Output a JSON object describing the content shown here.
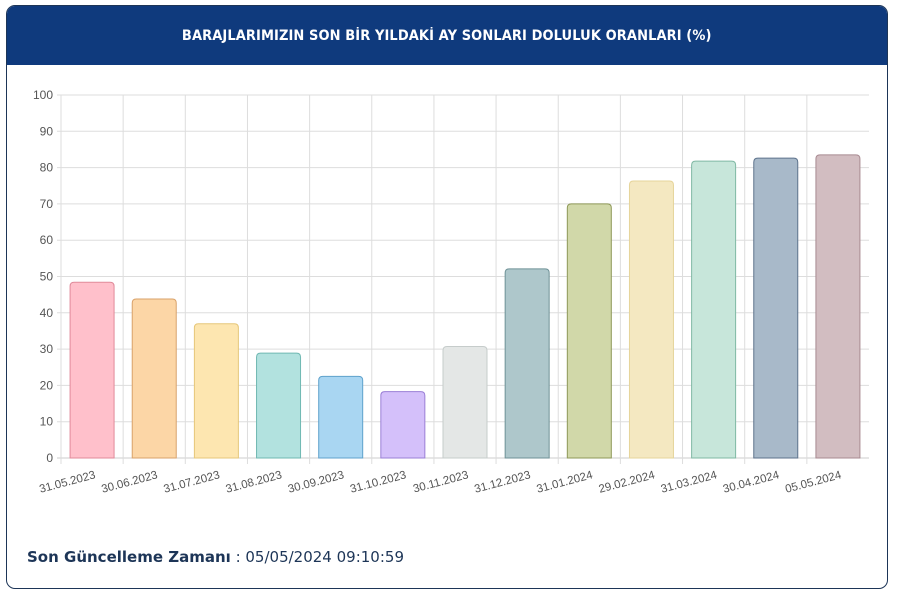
{
  "header": {
    "title": "BARAJLARIMIZIN SON BİR YILDAKİ AY SONLARI DOLULUK ORANLARI (%)"
  },
  "footer": {
    "label": "Son Güncelleme Zamanı",
    "separator": " : ",
    "value": "05/05/2024 09:10:59"
  },
  "colors": {
    "header_bg": "#0f3a7d",
    "card_border": "#1d3557",
    "grid": "#dddddd",
    "tick_text": "#555555"
  },
  "chart_data": {
    "type": "bar",
    "title": "BARAJLARIMIZIN SON BİR YILDAKİ AY SONLARI DOLULUK ORANLARI (%)",
    "xlabel": "",
    "ylabel": "",
    "ylim": [
      0,
      100
    ],
    "yticks": [
      0,
      10,
      20,
      30,
      40,
      50,
      60,
      70,
      80,
      90,
      100
    ],
    "grid": true,
    "legend": "none",
    "categories": [
      "31.05.2023",
      "30.06.2023",
      "31.07.2023",
      "31.08.2023",
      "30.09.2023",
      "31.10.2023",
      "30.11.2023",
      "31.12.2023",
      "31.01.2024",
      "29.02.2024",
      "31.03.2024",
      "30.04.2024",
      "05.05.2024"
    ],
    "values": [
      48.4,
      43.8,
      37.0,
      28.9,
      22.5,
      18.3,
      30.7,
      52.1,
      70.0,
      76.3,
      81.8,
      82.6,
      83.5
    ],
    "bar_colors": [
      "#ffc0cb",
      "#fcd6a6",
      "#fde6b0",
      "#b2e2df",
      "#a9d6f2",
      "#d4c0fa",
      "#e4e7e6",
      "#aec7cb",
      "#d1d8a9",
      "#f4e8c1",
      "#c7e6da",
      "#a8b9c9",
      "#d2bdc1"
    ],
    "bar_borders": [
      "#e08a9a",
      "#d9a26a",
      "#e6c77a",
      "#6fb8b2",
      "#5fa2cc",
      "#9a7fd6",
      "#c6cccb",
      "#6f9297",
      "#8e9858",
      "#e6d49a",
      "#7fb8a3",
      "#5d728c",
      "#a88a91"
    ]
  }
}
